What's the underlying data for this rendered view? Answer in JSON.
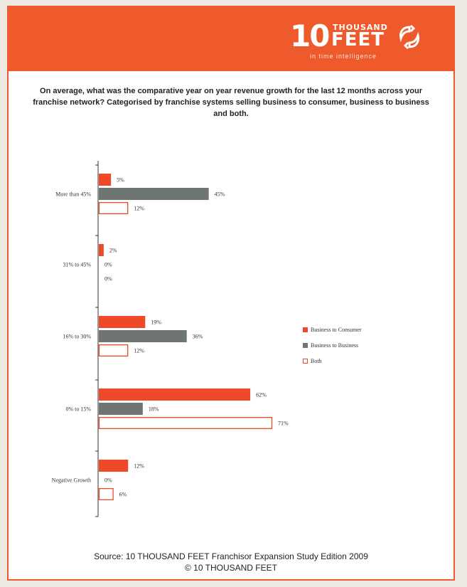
{
  "header": {
    "logo": {
      "number": "10",
      "thousand": "THOUSAND",
      "feet": "FEET",
      "tagline": "in time intelligence",
      "brand_color": "#ee5a2b"
    }
  },
  "title": "On average, what was the comparative year on year revenue growth for the last 12 months across your franchise network? Categorised by franchise systems selling business to consumer, business to business and both.",
  "chart_data": {
    "type": "bar",
    "orientation": "horizontal",
    "title": "On average, what was the comparative year on year revenue growth for the last 12 months across your franchise network? Categorised by franchise systems selling business to consumer, business to business and both.",
    "categories": [
      "More than 45%",
      "31% to 45%",
      "16% to 30%",
      "0% to 15%",
      "Negative Growth"
    ],
    "series": [
      {
        "name": "Business to Consumer",
        "values": [
          5,
          2,
          19,
          62,
          12
        ],
        "labels": [
          "5%",
          "2%",
          "19%",
          "62%",
          "12%"
        ],
        "color": "#ee4a2a",
        "style": "filled"
      },
      {
        "name": "Business to Business",
        "values": [
          45,
          0,
          36,
          18,
          0
        ],
        "labels": [
          "45%",
          "0%",
          "36%",
          "18%",
          "0%"
        ],
        "color": "#6f7672",
        "style": "filled"
      },
      {
        "name": "Both",
        "values": [
          12,
          0,
          12,
          71,
          6
        ],
        "labels": [
          "12%",
          "0%",
          "12%",
          "71%",
          "6%"
        ],
        "color": "#ee4a2a",
        "style": "outline"
      }
    ],
    "xlim": [
      0,
      71
    ],
    "grid": false,
    "legend": "right"
  },
  "footer": {
    "source": "Source: 10 THOUSAND FEET Franchisor Expansion Study Edition 2009",
    "copyright": "© 10 THOUSAND FEET"
  }
}
